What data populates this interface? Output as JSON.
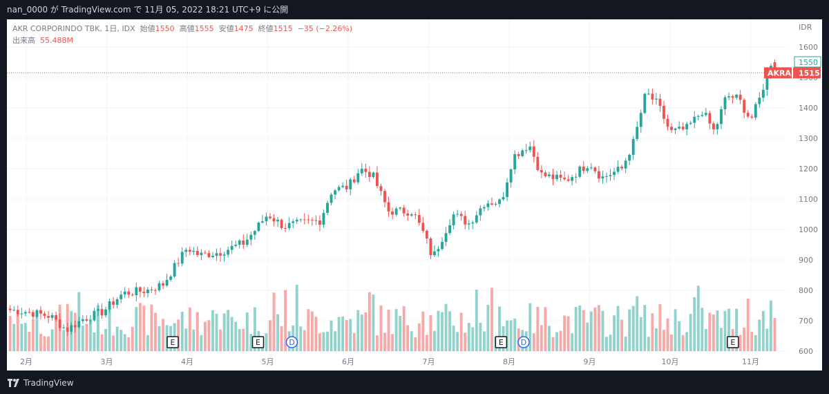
{
  "header": {
    "title": "nan_0000 が TradingView.com で 11月 05, 2022 18:21 UTC+9 に公開"
  },
  "legend": {
    "symbol": "AKR CORPORINDO TBK, 1日, IDX",
    "open_label": "始値",
    "open": "1550",
    "high_label": "高値",
    "high": "1555",
    "low_label": "安値",
    "low": "1475",
    "close_label": "終値",
    "close": "1515",
    "change": "−35 (−2.26%)",
    "volume_label": "出来高",
    "volume": "55.488M"
  },
  "axis": {
    "currency": "IDR"
  },
  "price_tags": {
    "prev": "1550",
    "symbol": "AKRA",
    "last": "1515"
  },
  "events": [
    {
      "label": "E",
      "month_pos": 3.82
    },
    {
      "label": "E",
      "month_pos": 4.88
    },
    {
      "label": "D",
      "month_pos": 5.3
    },
    {
      "label": "E",
      "month_pos": 7.9
    },
    {
      "label": "D",
      "month_pos": 8.18
    },
    {
      "label": "E",
      "month_pos": 10.78
    }
  ],
  "footer": {
    "brand": "TradingView"
  },
  "colors": {
    "up": "#26a69a",
    "down": "#ef5350",
    "vol_up": "#92d2cc",
    "vol_down": "#f7a9a7",
    "grid": "#f0f3fa"
  },
  "chart_data": {
    "type": "candlestick",
    "title": "AKR CORPORINDO TBK, 1日, IDX",
    "xlabel": "",
    "ylabel": "IDR",
    "ylim": [
      600,
      1650
    ],
    "y_ticks": [
      600,
      700,
      800,
      900,
      1000,
      1100,
      1200,
      1300,
      1400,
      1500,
      1600
    ],
    "x_ticks": [
      "2月",
      "3月",
      "4月",
      "5月",
      "6月",
      "7月",
      "8月",
      "9月",
      "10月",
      "11月"
    ],
    "grid": true,
    "anchors": [
      {
        "x": "1.8",
        "close": 735
      },
      {
        "x": "2.0",
        "close": 730
      },
      {
        "x": "2.3",
        "close": 715
      },
      {
        "x": "2.5",
        "close": 670
      },
      {
        "x": "2.7",
        "close": 705
      },
      {
        "x": "2.95",
        "close": 730
      },
      {
        "x": "3.2",
        "close": 790
      },
      {
        "x": "3.5",
        "close": 800
      },
      {
        "x": "3.7",
        "close": 820
      },
      {
        "x": "3.85",
        "close": 880
      },
      {
        "x": "4.0",
        "close": 940
      },
      {
        "x": "4.15",
        "close": 915
      },
      {
        "x": "4.4",
        "close": 925
      },
      {
        "x": "4.7",
        "close": 955
      },
      {
        "x": "4.85",
        "close": 1000
      },
      {
        "x": "5.0",
        "close": 1050
      },
      {
        "x": "5.2",
        "close": 1010
      },
      {
        "x": "5.4",
        "close": 1020
      },
      {
        "x": "5.65",
        "close": 1030
      },
      {
        "x": "5.8",
        "close": 1130
      },
      {
        "x": "6.0",
        "close": 1140
      },
      {
        "x": "6.15",
        "close": 1200
      },
      {
        "x": "6.3",
        "close": 1180
      },
      {
        "x": "6.5",
        "close": 1060
      },
      {
        "x": "6.8",
        "close": 1060
      },
      {
        "x": "6.95",
        "close": 980
      },
      {
        "x": "7.05",
        "close": 905
      },
      {
        "x": "7.3",
        "close": 1050
      },
      {
        "x": "7.5",
        "close": 1020
      },
      {
        "x": "7.7",
        "close": 1090
      },
      {
        "x": "7.9",
        "close": 1090
      },
      {
        "x": "8.05",
        "close": 1240
      },
      {
        "x": "8.25",
        "close": 1280
      },
      {
        "x": "8.4",
        "close": 1180
      },
      {
        "x": "8.7",
        "close": 1160
      },
      {
        "x": "9.0",
        "close": 1220
      },
      {
        "x": "9.15",
        "close": 1170
      },
      {
        "x": "9.4",
        "close": 1200
      },
      {
        "x": "9.55",
        "close": 1290
      },
      {
        "x": "9.7",
        "close": 1450
      },
      {
        "x": "9.85",
        "close": 1410
      },
      {
        "x": "10.0",
        "close": 1320
      },
      {
        "x": "10.2",
        "close": 1330
      },
      {
        "x": "10.4",
        "close": 1390
      },
      {
        "x": "10.55",
        "close": 1320
      },
      {
        "x": "10.7",
        "close": 1440
      },
      {
        "x": "10.85",
        "close": 1430
      },
      {
        "x": "11.0",
        "close": 1360
      },
      {
        "x": "11.1",
        "close": 1420
      },
      {
        "x": "11.25",
        "close": 1550
      },
      {
        "x": "11.3",
        "close": 1515
      }
    ],
    "last": {
      "open": 1550,
      "high": 1555,
      "low": 1475,
      "close": 1515,
      "volume": "55.488M"
    }
  }
}
